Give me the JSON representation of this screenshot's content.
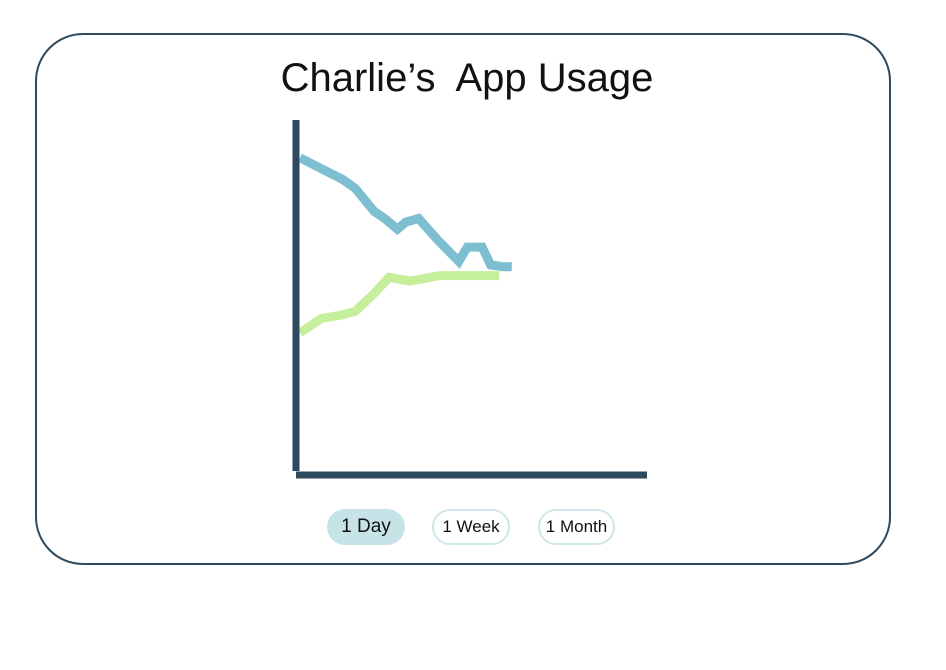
{
  "title": "Charlie’s  App Usage",
  "chart_data": {
    "type": "line",
    "title": "Charlie’s  App Usage",
    "xlabel": "",
    "ylabel": "",
    "x": [
      0,
      1,
      2,
      3,
      4,
      5,
      6,
      7,
      8,
      9,
      10,
      11,
      12,
      13,
      14,
      15,
      16
    ],
    "xlim": [
      0,
      17
    ],
    "ylim": [
      0,
      100
    ],
    "grid": false,
    "series": [
      {
        "color": "#7dbfd0",
        "x": [
          0,
          1,
          2,
          2.6,
          3.5,
          4,
          4.6,
          5.0,
          5.6,
          6.5,
          7.5,
          7.9,
          8.6,
          9.0,
          9.6,
          10.0
        ],
        "values": [
          88,
          85,
          82,
          79.5,
          73,
          71,
          68,
          70,
          71,
          65,
          59,
          63,
          63,
          58,
          57.5,
          57.5
        ]
      },
      {
        "color": "#c6ef9b",
        "x": [
          0,
          1,
          2,
          2.6,
          3.5,
          4.2,
          5.2,
          6.6,
          7.6,
          9.4
        ],
        "values": [
          39,
          43,
          44,
          45,
          50,
          54.5,
          53.5,
          55,
          55,
          55
        ]
      }
    ]
  },
  "colors": {
    "axis": "#2e4a5f",
    "border": "#2e4a5f",
    "tab_active_bg": "#c6e4e7",
    "tab_border": "#cfe7ea"
  },
  "range_tabs": {
    "day": "1 Day",
    "week": "1 Week",
    "month": "1 Month",
    "selected": "1 Day"
  }
}
